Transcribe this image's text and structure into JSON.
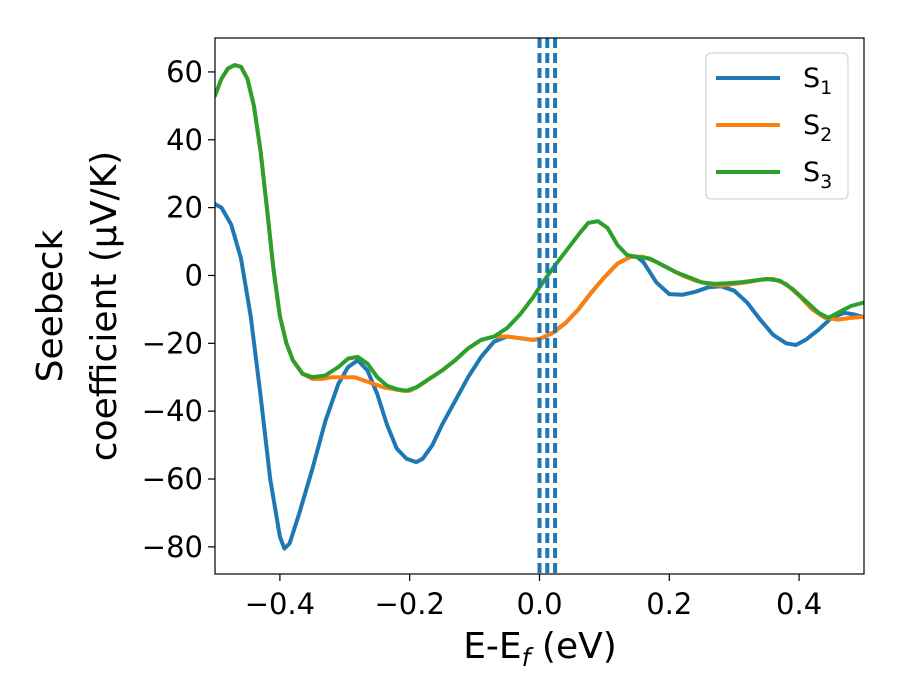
{
  "chart_data": {
    "type": "line",
    "xlabel": "E-E",
    "xlabel_sub": "f",
    "xlabel_unit": " (eV)",
    "ylabel_line1": "Seebeck",
    "ylabel_line2": "coefficient  (μV/K)",
    "xlim": [
      -0.5,
      0.5
    ],
    "ylim": [
      -88,
      70
    ],
    "xticks": [
      -0.4,
      -0.2,
      0.0,
      0.2,
      0.4
    ],
    "xtick_labels": [
      "−0.4",
      "−0.2",
      "0.0",
      "0.2",
      "0.4"
    ],
    "yticks": [
      -80,
      -60,
      -40,
      -20,
      0,
      20,
      40,
      60
    ],
    "ytick_labels": [
      "−80",
      "−60",
      "−40",
      "−20",
      "0",
      "20",
      "40",
      "60"
    ],
    "grid": false,
    "legend_placement": "top-right",
    "vertical_lines": [
      {
        "x": 0.0,
        "color": "#000000",
        "style": "dashed"
      },
      {
        "x": 0.0,
        "color": "#1f77b4",
        "style": "dashed"
      },
      {
        "x": 0.012,
        "color": "#1f77b4",
        "style": "dashed"
      },
      {
        "x": 0.024,
        "color": "#1f77b4",
        "style": "dashed"
      }
    ],
    "series": [
      {
        "name": "S",
        "name_sub": "1",
        "color": "#1f77b4",
        "points": [
          [
            -0.5,
            21
          ],
          [
            -0.49,
            20
          ],
          [
            -0.475,
            15
          ],
          [
            -0.46,
            5
          ],
          [
            -0.445,
            -12
          ],
          [
            -0.43,
            -35
          ],
          [
            -0.415,
            -60
          ],
          [
            -0.4,
            -77
          ],
          [
            -0.393,
            -80.5
          ],
          [
            -0.385,
            -79
          ],
          [
            -0.37,
            -70
          ],
          [
            -0.35,
            -57
          ],
          [
            -0.33,
            -43
          ],
          [
            -0.31,
            -32
          ],
          [
            -0.295,
            -27
          ],
          [
            -0.28,
            -25
          ],
          [
            -0.265,
            -28
          ],
          [
            -0.25,
            -35
          ],
          [
            -0.235,
            -44
          ],
          [
            -0.22,
            -51
          ],
          [
            -0.205,
            -54
          ],
          [
            -0.19,
            -55
          ],
          [
            -0.18,
            -54
          ],
          [
            -0.165,
            -50
          ],
          [
            -0.15,
            -44
          ],
          [
            -0.13,
            -37
          ],
          [
            -0.11,
            -30
          ],
          [
            -0.09,
            -24
          ],
          [
            -0.07,
            -19.5
          ],
          [
            -0.05,
            -18
          ],
          [
            -0.03,
            -18.5
          ],
          [
            -0.01,
            -19
          ],
          [
            0.0,
            -18.7
          ],
          [
            0.02,
            -17
          ],
          [
            0.04,
            -14
          ],
          [
            0.06,
            -10
          ],
          [
            0.08,
            -5
          ],
          [
            0.1,
            -0.5
          ],
          [
            0.12,
            3.5
          ],
          [
            0.14,
            5.5
          ],
          [
            0.15,
            5.5
          ],
          [
            0.16,
            4
          ],
          [
            0.18,
            -2
          ],
          [
            0.2,
            -5.5
          ],
          [
            0.22,
            -5.7
          ],
          [
            0.24,
            -4.8
          ],
          [
            0.26,
            -3.5
          ],
          [
            0.28,
            -3.2
          ],
          [
            0.3,
            -4.5
          ],
          [
            0.32,
            -8
          ],
          [
            0.34,
            -13
          ],
          [
            0.36,
            -17.5
          ],
          [
            0.38,
            -20
          ],
          [
            0.395,
            -20.5
          ],
          [
            0.41,
            -19
          ],
          [
            0.43,
            -16
          ],
          [
            0.45,
            -12.5
          ],
          [
            0.47,
            -11
          ],
          [
            0.485,
            -11.5
          ],
          [
            0.5,
            -12.3
          ]
        ]
      },
      {
        "name": "S",
        "name_sub": "2",
        "color": "#ff7f0e",
        "points": [
          [
            -0.5,
            53
          ],
          [
            -0.49,
            58
          ],
          [
            -0.48,
            61
          ],
          [
            -0.47,
            62
          ],
          [
            -0.46,
            61.5
          ],
          [
            -0.45,
            58
          ],
          [
            -0.44,
            50
          ],
          [
            -0.43,
            37
          ],
          [
            -0.42,
            20
          ],
          [
            -0.41,
            2
          ],
          [
            -0.4,
            -12
          ],
          [
            -0.39,
            -20
          ],
          [
            -0.38,
            -25
          ],
          [
            -0.365,
            -29
          ],
          [
            -0.35,
            -30.5
          ],
          [
            -0.335,
            -30.5
          ],
          [
            -0.32,
            -30
          ],
          [
            -0.3,
            -30
          ],
          [
            -0.285,
            -30
          ],
          [
            -0.27,
            -31
          ],
          [
            -0.255,
            -32
          ],
          [
            -0.24,
            -33
          ],
          [
            -0.225,
            -33.5
          ],
          [
            -0.21,
            -34
          ],
          [
            -0.2,
            -34
          ],
          [
            -0.185,
            -32.5
          ],
          [
            -0.17,
            -30.5
          ],
          [
            -0.15,
            -28
          ],
          [
            -0.13,
            -25
          ],
          [
            -0.11,
            -21.5
          ],
          [
            -0.09,
            -19
          ],
          [
            -0.07,
            -18
          ],
          [
            -0.05,
            -18
          ],
          [
            -0.03,
            -18.5
          ],
          [
            -0.01,
            -19
          ],
          [
            0.0,
            -18.7
          ],
          [
            0.02,
            -17
          ],
          [
            0.04,
            -14
          ],
          [
            0.06,
            -10
          ],
          [
            0.08,
            -5
          ],
          [
            0.1,
            -0.5
          ],
          [
            0.12,
            3.5
          ],
          [
            0.14,
            5.5
          ],
          [
            0.16,
            5.5
          ],
          [
            0.18,
            4
          ],
          [
            0.2,
            2
          ],
          [
            0.22,
            0
          ],
          [
            0.24,
            -1.5
          ],
          [
            0.26,
            -2.5
          ],
          [
            0.28,
            -3
          ],
          [
            0.3,
            -2.5
          ],
          [
            0.32,
            -2
          ],
          [
            0.34,
            -1.3
          ],
          [
            0.36,
            -1
          ],
          [
            0.38,
            -2.5
          ],
          [
            0.4,
            -6
          ],
          [
            0.42,
            -10
          ],
          [
            0.44,
            -12.5
          ],
          [
            0.46,
            -13
          ],
          [
            0.48,
            -12.5
          ],
          [
            0.5,
            -12.2
          ]
        ]
      },
      {
        "name": "S",
        "name_sub": "3",
        "color": "#2ca02c",
        "points": [
          [
            -0.5,
            53
          ],
          [
            -0.49,
            58
          ],
          [
            -0.48,
            61
          ],
          [
            -0.47,
            62
          ],
          [
            -0.46,
            61.5
          ],
          [
            -0.45,
            58
          ],
          [
            -0.44,
            50
          ],
          [
            -0.43,
            37
          ],
          [
            -0.42,
            20
          ],
          [
            -0.41,
            2
          ],
          [
            -0.4,
            -12
          ],
          [
            -0.39,
            -20
          ],
          [
            -0.38,
            -25
          ],
          [
            -0.365,
            -29
          ],
          [
            -0.35,
            -30
          ],
          [
            -0.33,
            -29.5
          ],
          [
            -0.31,
            -27
          ],
          [
            -0.295,
            -24.5
          ],
          [
            -0.28,
            -24
          ],
          [
            -0.265,
            -26
          ],
          [
            -0.25,
            -30
          ],
          [
            -0.235,
            -32.5
          ],
          [
            -0.22,
            -33.5
          ],
          [
            -0.205,
            -34
          ],
          [
            -0.19,
            -33
          ],
          [
            -0.17,
            -30.5
          ],
          [
            -0.15,
            -28
          ],
          [
            -0.13,
            -25
          ],
          [
            -0.11,
            -21.5
          ],
          [
            -0.09,
            -19
          ],
          [
            -0.07,
            -18
          ],
          [
            -0.05,
            -15.5
          ],
          [
            -0.03,
            -11.5
          ],
          [
            -0.01,
            -6.5
          ],
          [
            0.0,
            -3.5
          ],
          [
            0.02,
            2
          ],
          [
            0.04,
            7
          ],
          [
            0.06,
            12
          ],
          [
            0.075,
            15.5
          ],
          [
            0.09,
            16
          ],
          [
            0.105,
            14
          ],
          [
            0.12,
            9
          ],
          [
            0.135,
            6
          ],
          [
            0.15,
            5.5
          ],
          [
            0.17,
            5
          ],
          [
            0.19,
            3
          ],
          [
            0.21,
            1
          ],
          [
            0.23,
            -0.5
          ],
          [
            0.25,
            -2
          ],
          [
            0.27,
            -2.5
          ],
          [
            0.29,
            -2.3
          ],
          [
            0.31,
            -2
          ],
          [
            0.33,
            -1.5
          ],
          [
            0.35,
            -1
          ],
          [
            0.37,
            -1.5
          ],
          [
            0.39,
            -4
          ],
          [
            0.41,
            -7.5
          ],
          [
            0.43,
            -11
          ],
          [
            0.445,
            -12.5
          ],
          [
            0.46,
            -11
          ],
          [
            0.48,
            -9
          ],
          [
            0.5,
            -8
          ]
        ]
      }
    ]
  }
}
